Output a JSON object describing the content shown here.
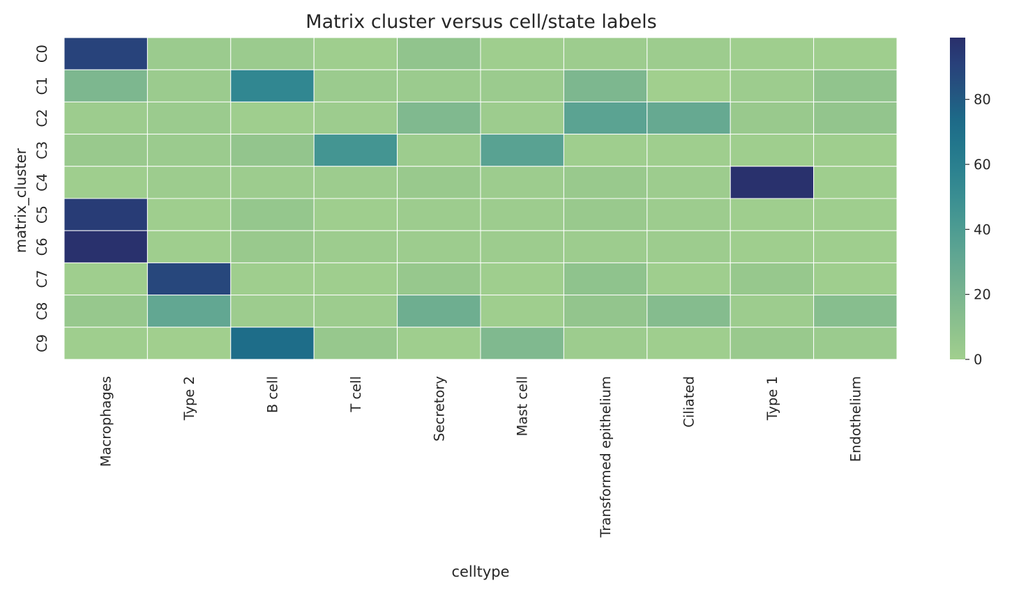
{
  "chart_data": {
    "type": "heatmap",
    "title": "Matrix cluster versus cell/state labels",
    "xlabel": "celltype",
    "ylabel": "matrix_cluster",
    "x_categories": [
      "Macrophages",
      "Type 2",
      "B cell",
      "T cell",
      "Secretory",
      "Mast cell",
      "Transformed epithelium",
      "Ciliated",
      "Type 1",
      "Endothelium"
    ],
    "y_categories": [
      "C0",
      "C1",
      "C2",
      "C3",
      "C4",
      "C5",
      "C6",
      "C7",
      "C8",
      "C9"
    ],
    "values": [
      [
        90,
        3,
        3,
        1,
        8,
        1,
        2,
        2,
        1,
        1
      ],
      [
        18,
        3,
        55,
        3,
        3,
        3,
        18,
        0,
        2,
        8
      ],
      [
        2,
        3,
        1,
        2,
        17,
        2,
        34,
        29,
        4,
        7
      ],
      [
        4,
        3,
        7,
        45,
        2,
        35,
        1,
        1,
        1,
        1
      ],
      [
        1,
        2,
        2,
        2,
        4,
        2,
        4,
        2,
        98,
        1
      ],
      [
        93,
        1,
        6,
        1,
        2,
        2,
        4,
        2,
        1,
        1
      ],
      [
        98,
        1,
        4,
        2,
        2,
        2,
        2,
        2,
        1,
        1
      ],
      [
        1,
        88,
        1,
        1,
        5,
        1,
        9,
        1,
        5,
        1
      ],
      [
        5,
        31,
        2,
        2,
        25,
        1,
        7,
        14,
        2,
        13
      ],
      [
        1,
        0,
        72,
        5,
        1,
        17,
        2,
        1,
        4,
        3
      ]
    ],
    "colormap": "crest",
    "colorbar": {
      "min": 0,
      "max": 99,
      "ticks": [
        0,
        20,
        40,
        60,
        80
      ]
    },
    "grid": false,
    "cell_borders": "#ffffff"
  }
}
